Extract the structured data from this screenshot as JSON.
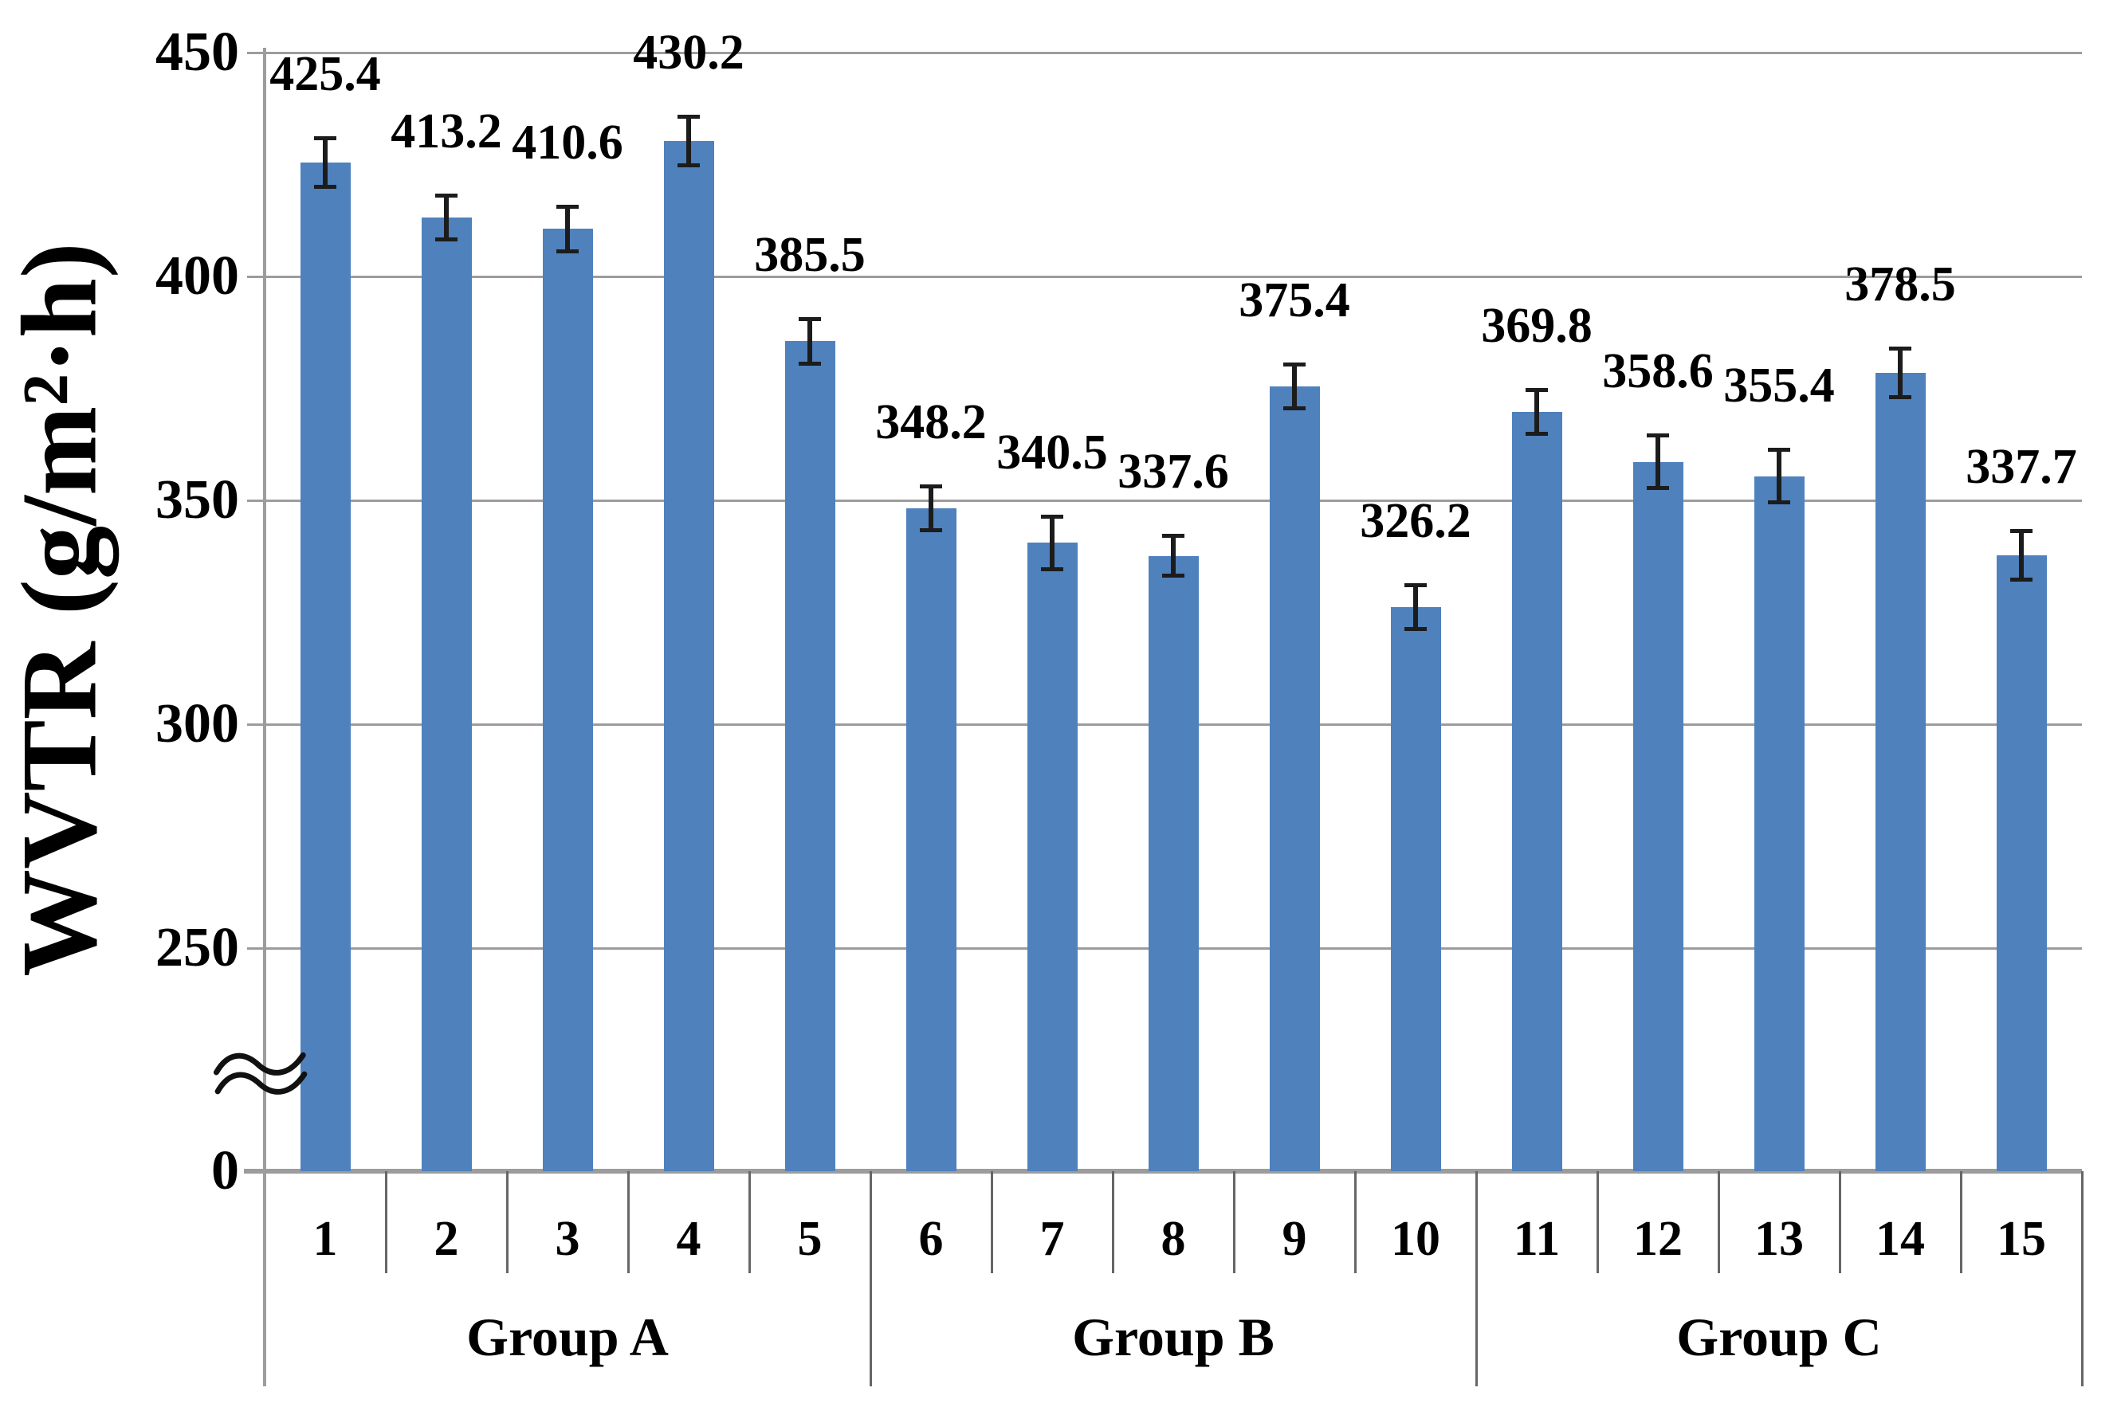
{
  "chart_data": {
    "type": "bar",
    "title": "",
    "xlabel": "",
    "ylabel": "WVTR (g/m²·h)",
    "categories": [
      "1",
      "2",
      "3",
      "4",
      "5",
      "6",
      "7",
      "8",
      "9",
      "10",
      "11",
      "12",
      "13",
      "14",
      "15"
    ],
    "values": [
      425.4,
      413.2,
      410.6,
      430.2,
      385.5,
      348.2,
      340.5,
      337.6,
      375.4,
      326.2,
      369.8,
      358.6,
      355.4,
      378.5,
      337.7
    ],
    "data_labels": [
      "425.4",
      "413.2",
      "410.6",
      "430.2",
      "385.5",
      "348.2",
      "340.5",
      "337.6",
      "375.4",
      "326.2",
      "369.8",
      "358.6",
      "355.4",
      "378.5",
      "337.7"
    ],
    "errors": [
      5.5,
      5.0,
      5.0,
      5.5,
      5.0,
      5.0,
      6.0,
      4.5,
      5.0,
      5.0,
      5.0,
      6.0,
      6.0,
      5.5,
      5.5
    ],
    "groups": [
      {
        "label": "Group A",
        "start_category": "1",
        "end_category": "5"
      },
      {
        "label": "Group B",
        "start_category": "6",
        "end_category": "10"
      },
      {
        "label": "Group C",
        "start_category": "11",
        "end_category": "15"
      }
    ],
    "y_ticks": [
      {
        "label": "450",
        "value": 450
      },
      {
        "label": "400",
        "value": 400
      },
      {
        "label": "350",
        "value": 350
      },
      {
        "label": "300",
        "value": 300
      },
      {
        "label": "250",
        "value": 250
      },
      {
        "label": "0",
        "value": 0
      }
    ],
    "ylim": [
      0,
      450
    ],
    "axis_break": {
      "present": true,
      "between": [
        0,
        250
      ]
    },
    "grid": true,
    "legend_position": "none",
    "colors": {
      "bar_fill": "#4f81bd",
      "gridline": "#9c9c9c",
      "axis_line": "#9c9c9c",
      "category_divider": "#666666",
      "error_bar": "#1c1c1c",
      "text": "#000000",
      "background": "#ffffff"
    }
  }
}
